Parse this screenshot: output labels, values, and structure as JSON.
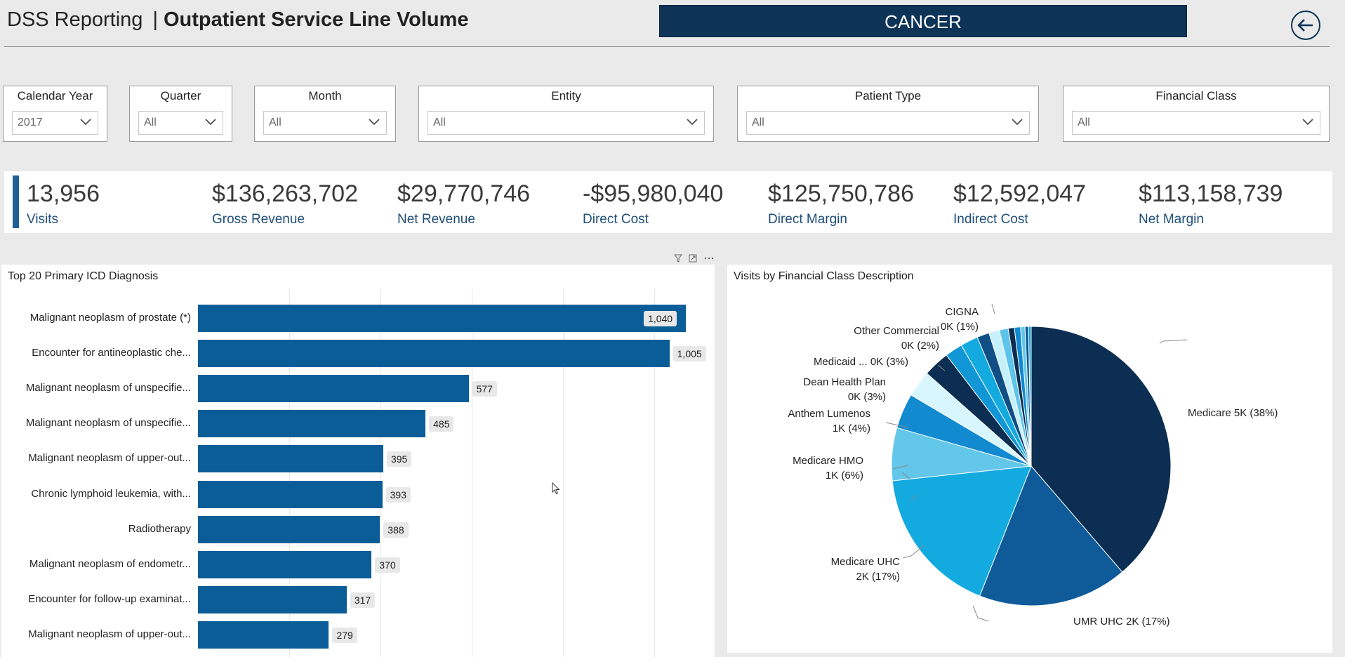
{
  "header": {
    "app_title": "DSS Reporting",
    "separator": "|",
    "page_title": "Outpatient Service Line Volume",
    "service_line_button": "CANCER"
  },
  "filters": [
    {
      "label": "Calendar Year",
      "value": "2017"
    },
    {
      "label": "Quarter",
      "value": "All"
    },
    {
      "label": "Month",
      "value": "All"
    },
    {
      "label": "Entity",
      "value": "All"
    },
    {
      "label": "Patient Type",
      "value": "All"
    },
    {
      "label": "Financial Class",
      "value": "All"
    }
  ],
  "kpis": [
    {
      "value": "13,956",
      "label": "Visits"
    },
    {
      "value": "$136,263,702",
      "label": "Gross Revenue"
    },
    {
      "value": "$29,770,746",
      "label": "Net Revenue"
    },
    {
      "value": "-$95,980,040",
      "label": "Direct Cost"
    },
    {
      "value": "$125,750,786",
      "label": "Direct Margin"
    },
    {
      "value": "$12,592,047",
      "label": "Indirect Cost"
    },
    {
      "value": "$113,158,739",
      "label": "Net Margin"
    }
  ],
  "chart_data": [
    {
      "type": "bar",
      "orientation": "horizontal",
      "title": "Top 20 Primary ICD Diagnosis",
      "categories": [
        "Malignant neoplasm of prostate (*)",
        "Encounter for antineoplastic che...",
        "Malignant neoplasm of unspecifie...",
        "Malignant neoplasm of unspecifie...",
        "Malignant neoplasm of upper-out...",
        "Chronic lymphoid leukemia, with...",
        "Radiotherapy",
        "Malignant neoplasm of endometr...",
        "Encounter for follow-up examinat...",
        "Malignant neoplasm of upper-out..."
      ],
      "values": [
        1040,
        1005,
        577,
        485,
        395,
        393,
        388,
        370,
        317,
        279
      ],
      "value_labels": [
        "1,040",
        "1,005",
        "577",
        "485",
        "395",
        "393",
        "388",
        "370",
        "317",
        "279"
      ],
      "color": "#0b5d97"
    },
    {
      "type": "pie",
      "title": "Visits by Financial Class Description",
      "slices": [
        {
          "label": "Medicare",
          "pct": 38,
          "display": "5K (38%)",
          "color": "#0c2e52"
        },
        {
          "label": "UMR UHC",
          "pct": 17,
          "display": "2K (17%)",
          "color": "#0f5b9a"
        },
        {
          "label": "Medicare UHC",
          "pct": 17,
          "display": "2K (17%)",
          "color": "#13aadf"
        },
        {
          "label": "Medicare HMO",
          "pct": 6,
          "display": "1K (6%)",
          "color": "#63c7ea"
        },
        {
          "label": "Anthem Lumenos",
          "pct": 4,
          "display": "1K (4%)",
          "color": "#118ad0"
        },
        {
          "label": "Dean Health Plan",
          "pct": 3,
          "display": "0K (3%)",
          "color": "#d8f6fd"
        },
        {
          "label": "Medicaid ...",
          "pct": 3,
          "display": "0K (3%)",
          "color": "#0c2e52"
        },
        {
          "label": "",
          "pct": 2,
          "display": "",
          "color": "#1196d6"
        },
        {
          "label": "Other Commercial",
          "pct": 2,
          "display": "0K (2%)",
          "color": "#13aadf"
        },
        {
          "label": "",
          "pct": 1.4,
          "display": "",
          "color": "#0f4f86"
        },
        {
          "label": "",
          "pct": 1.2,
          "display": "",
          "color": "#c6f0fb"
        },
        {
          "label": "CIGNA",
          "pct": 1,
          "display": "0K (1%)",
          "color": "#5dc4ea"
        },
        {
          "label": "",
          "pct": 0.7,
          "display": "",
          "color": "#0c2e52"
        },
        {
          "label": "",
          "pct": 0.7,
          "display": "",
          "color": "#118ad0"
        },
        {
          "label": "",
          "pct": 0.5,
          "display": "",
          "color": "#63c7ea"
        },
        {
          "label": "",
          "pct": 0.4,
          "display": "",
          "color": "#0f5b9a"
        },
        {
          "label": "",
          "pct": 0.3,
          "display": "",
          "color": "#13aadf"
        }
      ]
    }
  ]
}
